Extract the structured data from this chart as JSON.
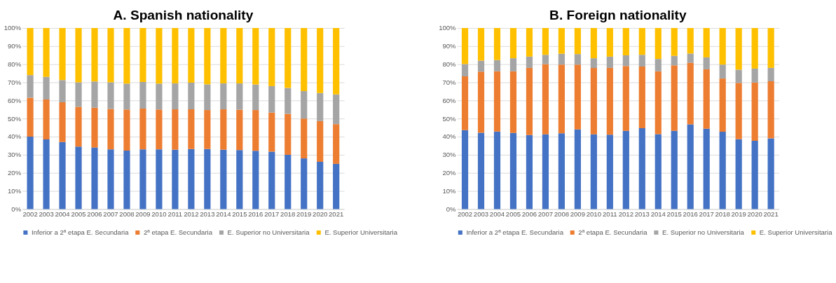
{
  "chart_data": [
    {
      "type": "bar",
      "title": "A. Spanish nationality",
      "stacked": true,
      "legend": "bottom",
      "grid": "y",
      "categories": [
        "2002",
        "2003",
        "2004",
        "2005",
        "2006",
        "2007",
        "2008",
        "2009",
        "2010",
        "2011",
        "2012",
        "2013",
        "2014",
        "2015",
        "2016",
        "2017",
        "2018",
        "2019",
        "2020",
        "2021"
      ],
      "ylim": [
        0,
        100
      ],
      "yticks": [
        {
          "value": 0,
          "label": "0%"
        },
        {
          "value": 10,
          "label": "10%"
        },
        {
          "value": 20,
          "label": "20%"
        },
        {
          "value": 30,
          "label": "30%"
        },
        {
          "value": 40,
          "label": "40%"
        },
        {
          "value": 50,
          "label": "50%"
        },
        {
          "value": 60,
          "label": "60%"
        },
        {
          "value": 70,
          "label": "70%"
        },
        {
          "value": 80,
          "label": "80%"
        },
        {
          "value": 90,
          "label": "90%"
        },
        {
          "value": 100,
          "label": "100%"
        }
      ],
      "series": [
        {
          "name": "Inferior a 2ª etapa E. Secundaria",
          "color": "#4472c4",
          "values": [
            40,
            38.5,
            37,
            34.5,
            34,
            33,
            32.3,
            33,
            33,
            32.8,
            33.2,
            33.2,
            32.8,
            32.6,
            32.2,
            31.7,
            30,
            28,
            26.1,
            25
          ]
        },
        {
          "name": "2ª etapa E. Secundaria",
          "color": "#ed7d31",
          "values": [
            21.5,
            22,
            22,
            22,
            22,
            22.3,
            22.7,
            22.5,
            22,
            22.3,
            21.9,
            21.5,
            22.3,
            22.3,
            22.5,
            21.6,
            22.6,
            22,
            22.5,
            21.9
          ]
        },
        {
          "name": "E. Superior no Universitaria",
          "color": "#a5a5a5",
          "values": [
            12.5,
            12.5,
            12.3,
            13.5,
            14.5,
            14.7,
            14.3,
            14.7,
            14.3,
            14.3,
            14.7,
            14.2,
            14.3,
            14.5,
            14.1,
            14.6,
            14.3,
            15.2,
            15.5,
            16.4
          ]
        },
        {
          "name": "E. Superior Universitaria",
          "color": "#ffc000",
          "values": [
            26,
            27,
            28.7,
            30,
            29.5,
            30,
            30.7,
            29.8,
            30.7,
            30.6,
            30.2,
            31.1,
            30.6,
            30.6,
            31.2,
            32.1,
            33.1,
            34.8,
            35.9,
            36.7
          ]
        }
      ]
    },
    {
      "type": "bar",
      "title": "B. Foreign nationality",
      "stacked": true,
      "legend": "bottom",
      "grid": "y",
      "categories": [
        "2002",
        "2003",
        "2004",
        "2005",
        "2006",
        "2007",
        "2008",
        "2009",
        "2010",
        "2011",
        "2012",
        "2013",
        "2014",
        "2015",
        "2016",
        "2017",
        "2018",
        "2019",
        "2020",
        "2021"
      ],
      "ylim": [
        0,
        100
      ],
      "yticks": [
        {
          "value": 0,
          "label": "0%"
        },
        {
          "value": 10,
          "label": "10%"
        },
        {
          "value": 20,
          "label": "20%"
        },
        {
          "value": 30,
          "label": "30%"
        },
        {
          "value": 40,
          "label": "40%"
        },
        {
          "value": 50,
          "label": "50%"
        },
        {
          "value": 60,
          "label": "60%"
        },
        {
          "value": 70,
          "label": "70%"
        },
        {
          "value": 80,
          "label": "80%"
        },
        {
          "value": 90,
          "label": "90%"
        },
        {
          "value": 100,
          "label": "100%"
        }
      ],
      "series": [
        {
          "name": "Inferior a 2ª etapa E. Secundaria",
          "color": "#4472c4",
          "values": [
            43.6,
            42.2,
            42.8,
            42.1,
            40.9,
            41.3,
            41.9,
            44,
            41.3,
            41.1,
            43.2,
            44.7,
            41.4,
            43.2,
            46.8,
            44.4,
            42.7,
            38.6,
            37.7,
            39.1
          ]
        },
        {
          "name": "2ª etapa E. Secundaria",
          "color": "#ed7d31",
          "values": [
            29.7,
            33.7,
            33.3,
            34,
            37.1,
            38.8,
            37.9,
            35.8,
            36.6,
            36.9,
            35.8,
            34,
            34.7,
            36.2,
            34,
            32.8,
            29.4,
            31.1,
            32.2,
            31.5
          ]
        },
        {
          "name": "E. Superior no Universitaria",
          "color": "#a5a5a5",
          "values": [
            6.8,
            6.1,
            6.2,
            7.2,
            6.2,
            5.1,
            6,
            5.8,
            5.4,
            6.2,
            5.9,
            6.5,
            6.8,
            5.2,
            5.1,
            6.6,
            7.7,
            7.3,
            7.7,
            7.4
          ]
        },
        {
          "name": "E. Superior Universitaria",
          "color": "#ffc000",
          "values": [
            19.9,
            18,
            17.7,
            16.7,
            15.8,
            14.8,
            14.2,
            14.4,
            16.7,
            15.8,
            15.1,
            14.8,
            17.1,
            15.4,
            14.1,
            16.2,
            20.2,
            23,
            22.4,
            22
          ]
        }
      ]
    }
  ]
}
